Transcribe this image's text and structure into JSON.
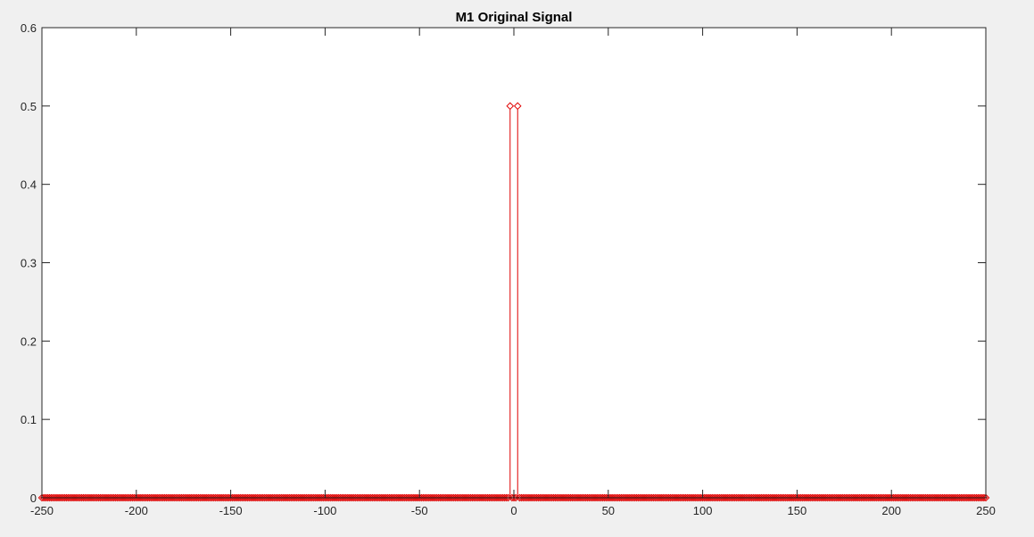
{
  "chart_data": {
    "type": "stem",
    "title": "M1 Original Signal",
    "xlabel": "",
    "ylabel": "",
    "xlim": [
      -250,
      250
    ],
    "ylim": [
      0,
      0.6
    ],
    "xticks": [
      -250,
      -200,
      -150,
      -100,
      -50,
      0,
      50,
      100,
      150,
      200,
      250
    ],
    "yticks": [
      0,
      0.1,
      0.2,
      0.3,
      0.4,
      0.5,
      0.6
    ],
    "grid": false,
    "legend": "none",
    "series": [
      {
        "x_range": [
          -250,
          250
        ],
        "x_step": 1,
        "default_value": 0,
        "nonzero_points": [
          {
            "x": -2,
            "y": 0.5
          },
          {
            "x": 2,
            "y": 0.5
          }
        ],
        "marker": "diamond",
        "color": "#e00000"
      }
    ]
  },
  "colors": {
    "figure_background": "#f0f0f0",
    "axes_background": "#ffffff",
    "axes_edge": "#262626",
    "series": "#e00000"
  }
}
